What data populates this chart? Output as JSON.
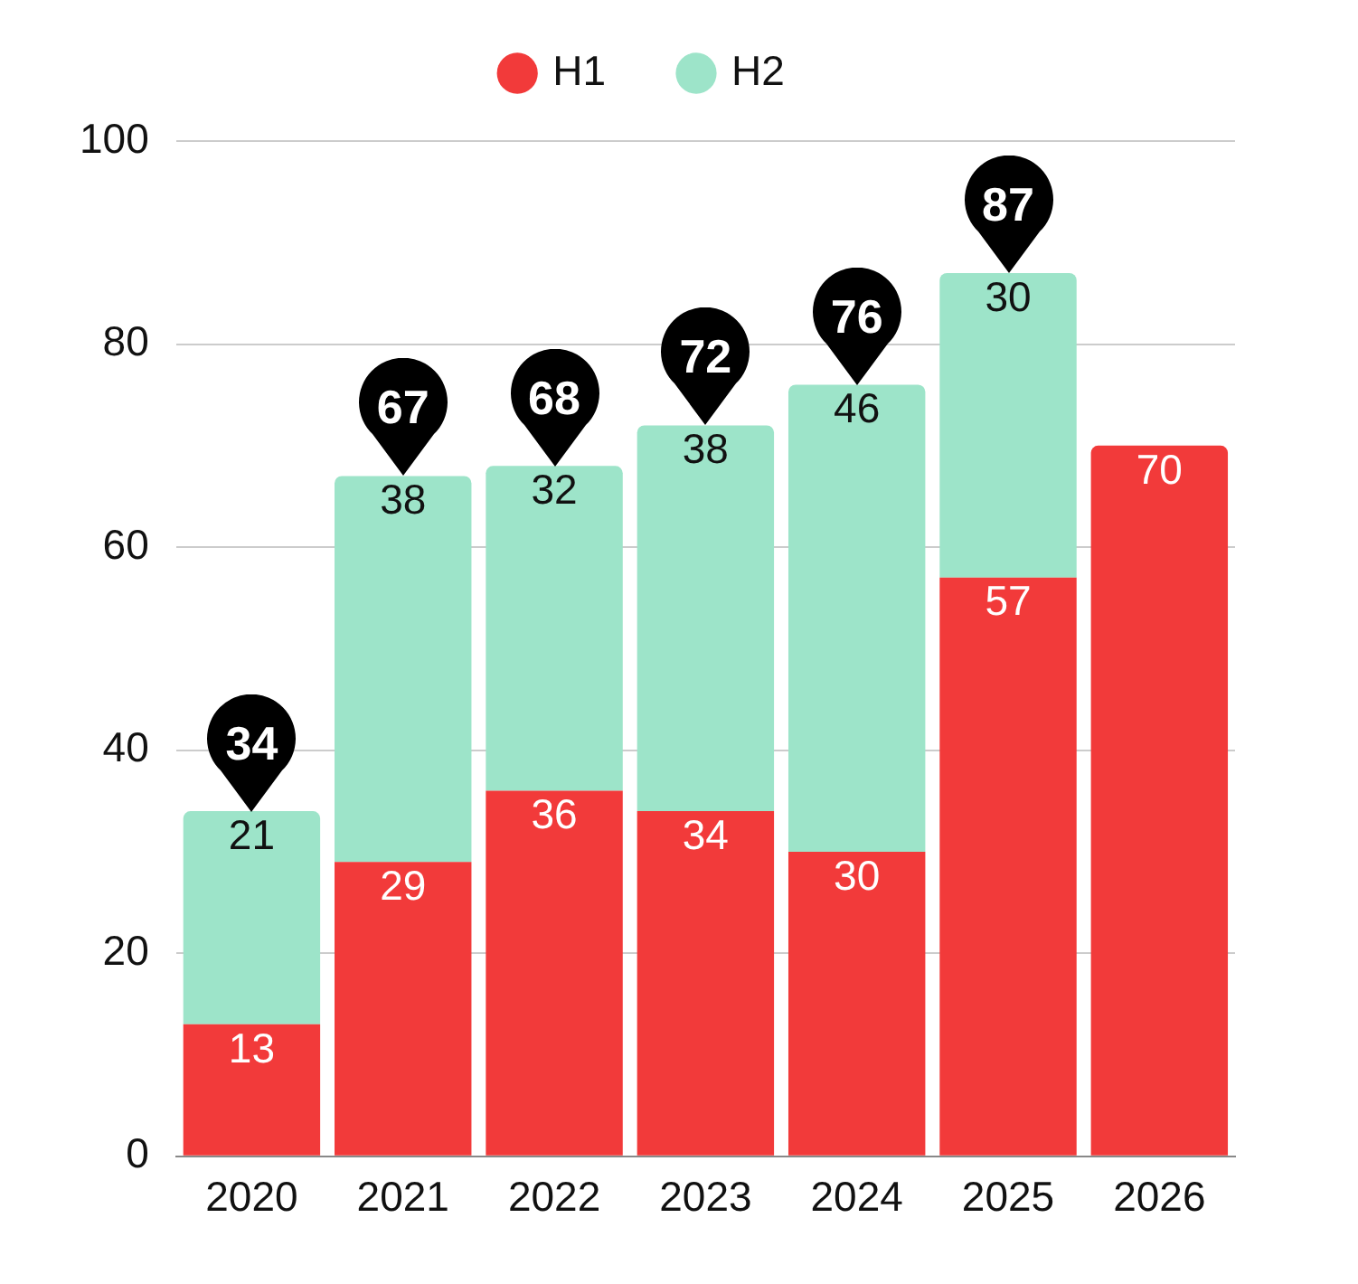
{
  "chart_data": {
    "type": "bar",
    "categories": [
      "2020",
      "2021",
      "2022",
      "2023",
      "2024",
      "2025",
      "2026"
    ],
    "series": [
      {
        "name": "H1",
        "color": "#f23a3a",
        "values": [
          13,
          29,
          36,
          34,
          30,
          57,
          70
        ]
      },
      {
        "name": "H2",
        "color": "#9de4c9",
        "values": [
          21,
          38,
          32,
          38,
          46,
          30,
          null
        ]
      }
    ],
    "stacked": true,
    "ylim": [
      0,
      100
    ],
    "yticks": [
      0,
      20,
      40,
      60,
      80,
      100
    ],
    "grid": "y",
    "legend": "top",
    "data_labels": true,
    "totals": [
      "34",
      "67",
      "68",
      "72",
      "76",
      "87",
      null
    ]
  }
}
